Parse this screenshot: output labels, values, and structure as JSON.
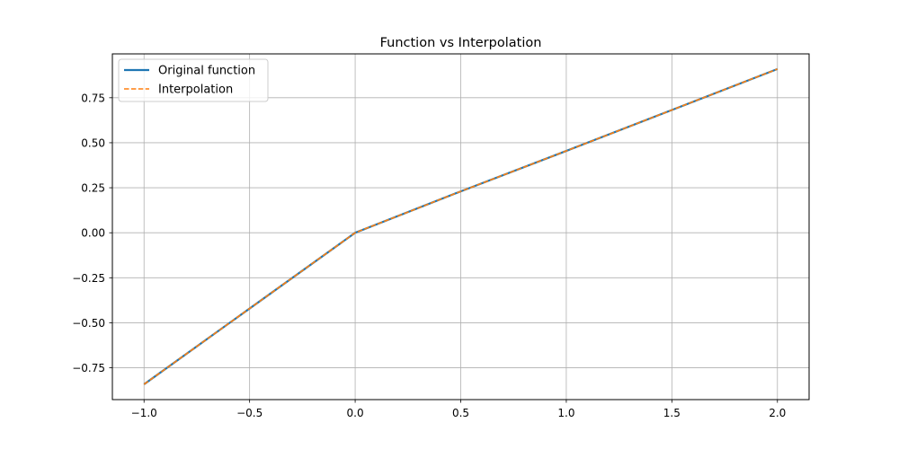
{
  "chart_data": {
    "type": "line",
    "title": "Function vs Interpolation",
    "xlabel": "",
    "ylabel": "",
    "xlim": [
      -1.15,
      2.15
    ],
    "ylim": [
      -0.9267,
      0.9935
    ],
    "xticks": [
      -1.0,
      -0.5,
      0.0,
      0.5,
      1.0,
      1.5,
      2.0
    ],
    "xtick_labels": [
      "−1.0",
      "−0.5",
      "0.0",
      "0.5",
      "1.0",
      "1.5",
      "2.0"
    ],
    "yticks": [
      -0.75,
      -0.5,
      -0.25,
      0.0,
      0.25,
      0.5,
      0.75
    ],
    "ytick_labels": [
      "−0.75",
      "−0.50",
      "−0.25",
      "0.00",
      "0.25",
      "0.50",
      "0.75"
    ],
    "grid": true,
    "legend_position": "upper-left",
    "series": [
      {
        "name": "Original function",
        "color": "#1f77b4",
        "style": "solid",
        "x": [
          -1.0,
          -0.5,
          0.0,
          0.5,
          1.0,
          1.5,
          2.0
        ],
        "y": [
          -0.8415,
          -0.4207,
          0.0,
          0.2298,
          0.4546,
          0.6819,
          0.9093
        ]
      },
      {
        "name": "Interpolation",
        "color": "#ff7f0e",
        "style": "dashed",
        "x": [
          -1.0,
          -0.5,
          0.0,
          0.5,
          1.0,
          1.5,
          2.0
        ],
        "y": [
          -0.8415,
          -0.4207,
          0.0,
          0.2298,
          0.4546,
          0.6819,
          0.9093
        ]
      }
    ]
  }
}
